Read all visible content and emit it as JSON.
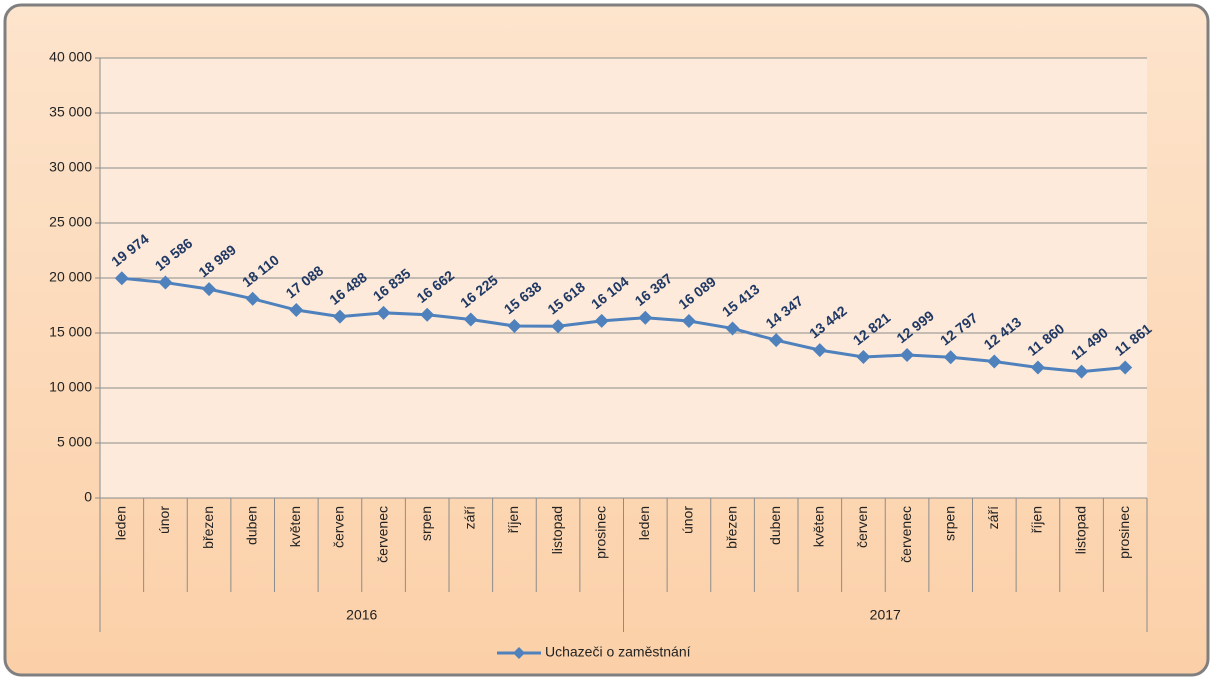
{
  "chart_data": {
    "type": "line",
    "categories": [
      "leden",
      "únor",
      "březen",
      "duben",
      "květen",
      "červen",
      "červenec",
      "srpen",
      "září",
      "říjen",
      "listopad",
      "prosinec",
      "leden",
      "únor",
      "březen",
      "duben",
      "květen",
      "červen",
      "červenec",
      "srpen",
      "září",
      "říjen",
      "listopad",
      "prosinec"
    ],
    "category_groups": [
      "2016",
      "2017"
    ],
    "series": [
      {
        "name": "Uchazeči o zaměstnání",
        "color": "#4f81bd",
        "values": [
          19974,
          19586,
          18989,
          18110,
          17088,
          16488,
          16835,
          16662,
          16225,
          15638,
          15618,
          16104,
          16387,
          16089,
          15413,
          14347,
          13442,
          12821,
          12999,
          12797,
          12413,
          11860,
          11490,
          11861
        ],
        "value_labels": [
          "19 974",
          "19 586",
          "18 989",
          "18 110",
          "17 088",
          "16 488",
          "16 835",
          "16 662",
          "16 225",
          "15 638",
          "15 618",
          "16 104",
          "16 387",
          "16 089",
          "15 413",
          "14 347",
          "13 442",
          "12 821",
          "12 999",
          "12 797",
          "12 413",
          "11 860",
          "11 490",
          "11 861"
        ]
      }
    ],
    "ylim": [
      0,
      40000
    ],
    "yticks": [
      0,
      {
        "value": 5000,
        "label": "5 000"
      },
      {
        "value": 10000,
        "label": "10 000"
      },
      {
        "value": 15000,
        "label": "15 000"
      },
      {
        "value": 20000,
        "label": "20 000"
      },
      {
        "value": 25000,
        "label": "25 000"
      },
      {
        "value": 30000,
        "label": "30 000"
      },
      {
        "value": 35000,
        "label": "35 000"
      },
      {
        "value": 40000,
        "label": "40 000"
      }
    ],
    "grid": true,
    "legend": "bottom"
  }
}
